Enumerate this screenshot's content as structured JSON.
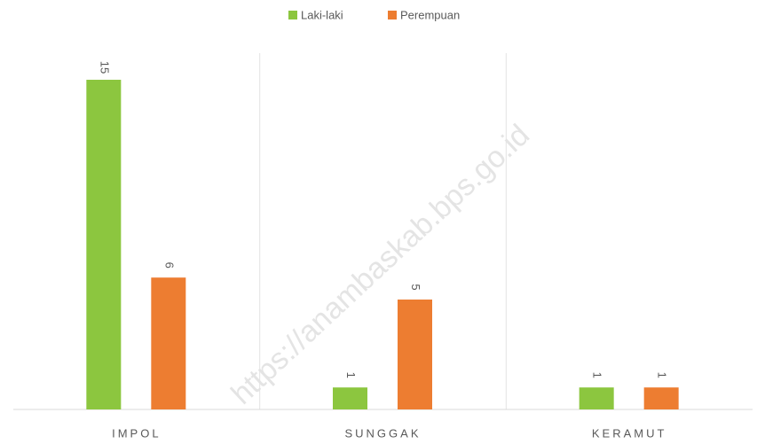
{
  "chart_data": {
    "type": "bar",
    "categories": [
      "IMPOL",
      "SUNGGAK",
      "KERAMUT"
    ],
    "series": [
      {
        "name": "Laki-laki",
        "color": "#8cc63f",
        "values": [
          15,
          1,
          1
        ]
      },
      {
        "name": "Perempuan",
        "color": "#ed7d31",
        "values": [
          6,
          5,
          1
        ]
      }
    ],
    "ylim": [
      0,
      15
    ],
    "watermark": "https://anambaskab.bps.go.id"
  }
}
